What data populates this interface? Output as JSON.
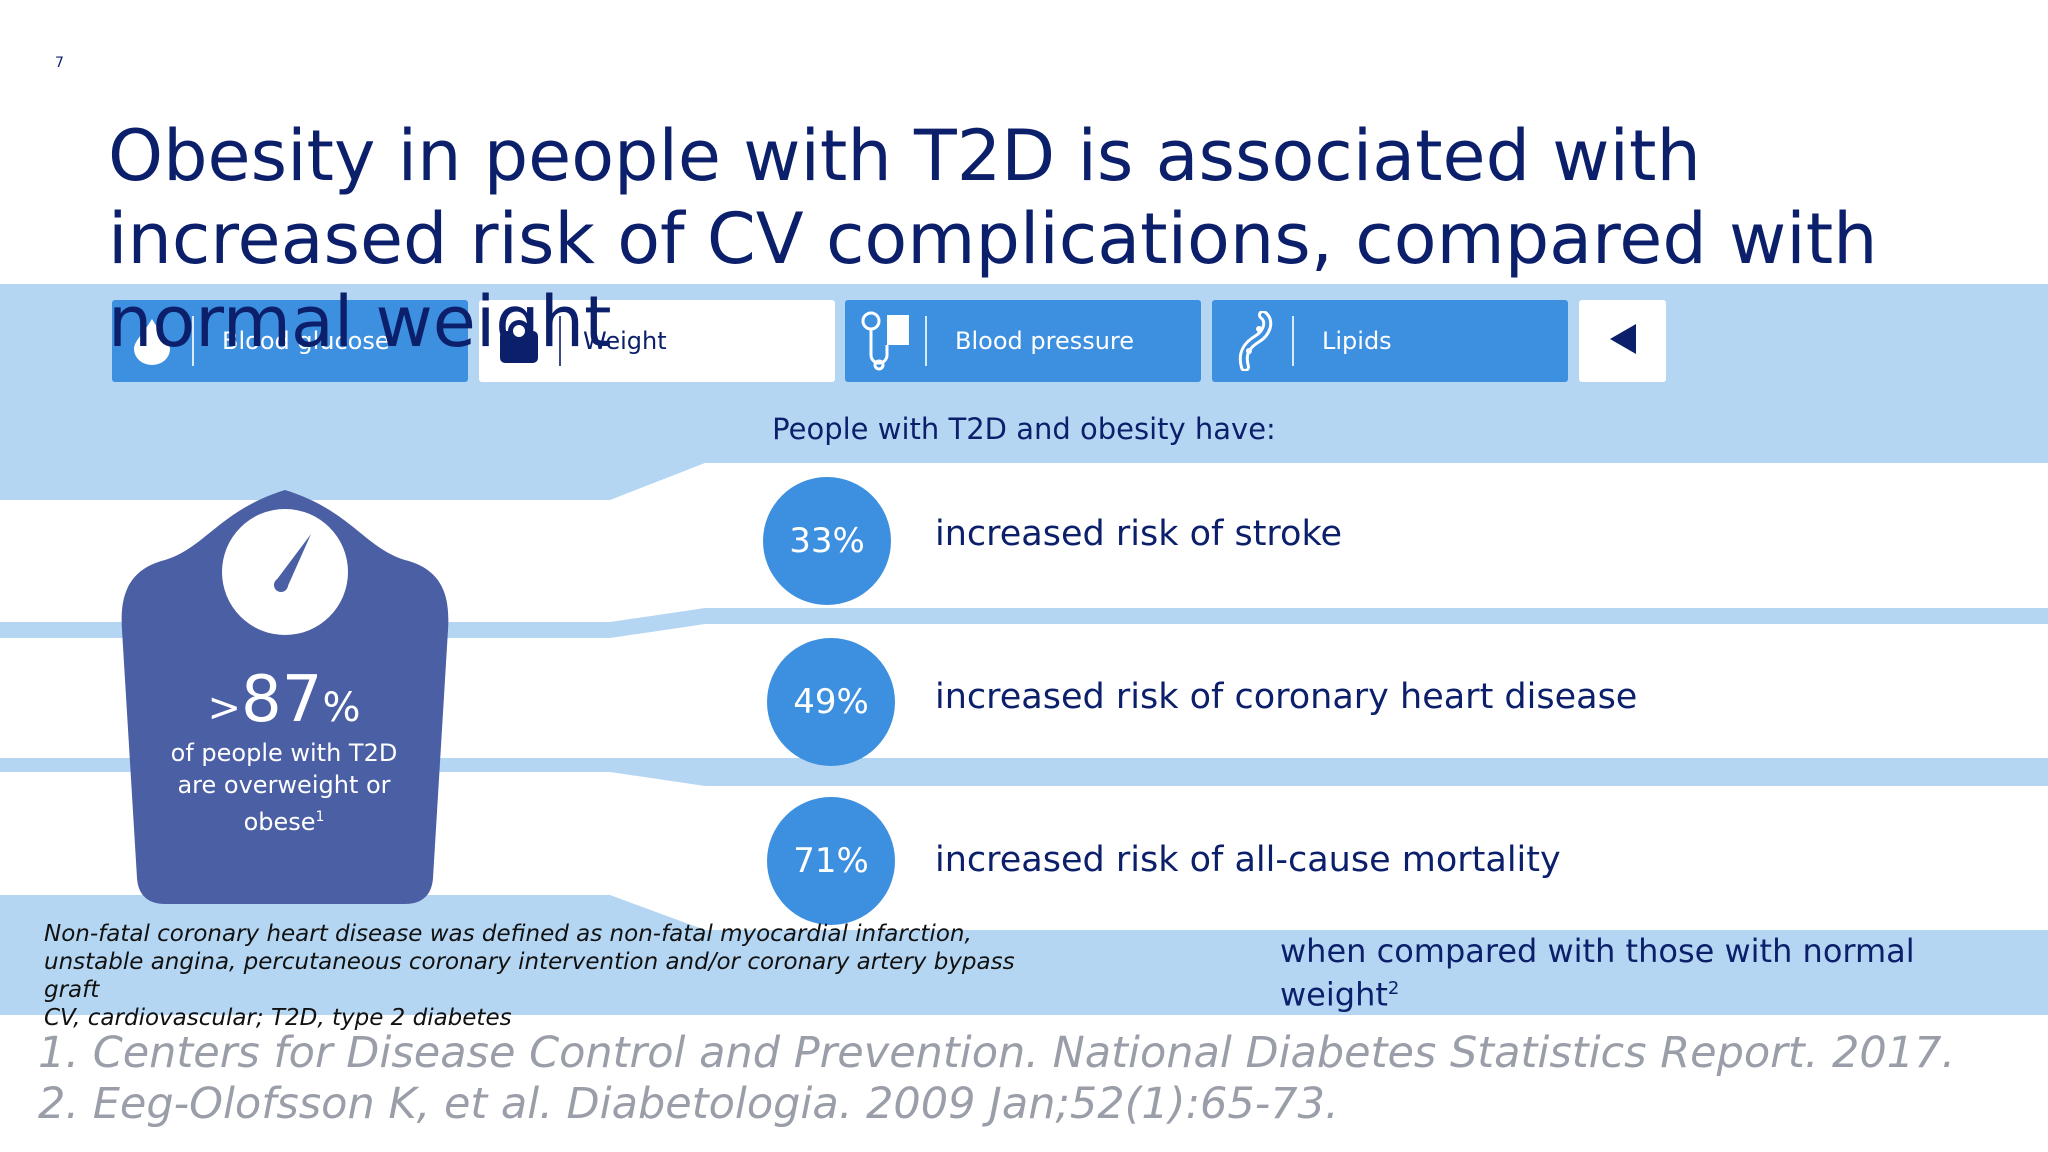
{
  "slide": {
    "page_number": "7",
    "title": "Obesity in people with T2D is associated with increased risk of CV complications, compared with normal weight"
  },
  "tabs": [
    {
      "label": "Blood glucose",
      "icon": "blood-drop-icon",
      "active": false
    },
    {
      "label": "Weight",
      "icon": "scale-icon",
      "active": true
    },
    {
      "label": "Blood pressure",
      "icon": "blood-pressure-cuff-icon",
      "active": false
    },
    {
      "label": "Lipids",
      "icon": "artery-icon",
      "active": false
    }
  ],
  "nav": {
    "prev_icon": "triangle-left-icon"
  },
  "subheading": "People with T2D and obesity have:",
  "scale": {
    "value_prefix": ">",
    "value": "87",
    "value_suffix": "%",
    "line1": "of people with T2D",
    "line2": "are overweight or",
    "line3": "obese",
    "ref": "1"
  },
  "risks": [
    {
      "percent": "33%",
      "text": "increased risk of ",
      "emphasis": "stroke"
    },
    {
      "percent": "49%",
      "text": "increased risk of ",
      "emphasis": "coronary heart disease"
    },
    {
      "percent": "71%",
      "text": "increased risk of ",
      "emphasis": "all-cause mortality"
    }
  ],
  "comparison": {
    "text": "when compared with those with normal weight",
    "ref": "2"
  },
  "footnotes": [
    "Non-fatal coronary heart disease was defined as non-fatal myocardial infarction, unstable angina, percutaneous coronary intervention and/or coronary artery bypass graft",
    "CV, cardiovascular; T2D, type 2 diabetes"
  ],
  "references": [
    "1. Centers for Disease Control and Prevention. National Diabetes Statistics Report. 2017.",
    "2. Eeg-Olofsson K, et al. Diabetologia. 2009 Jan;52(1):65-73."
  ],
  "colors": {
    "navy": "#0b1f6b",
    "accent_blue": "#3d8fdf",
    "band_blue": "#b5d6f2",
    "scale_blue": "#4b5fa5",
    "reference_gray": "#9a9ea8"
  }
}
